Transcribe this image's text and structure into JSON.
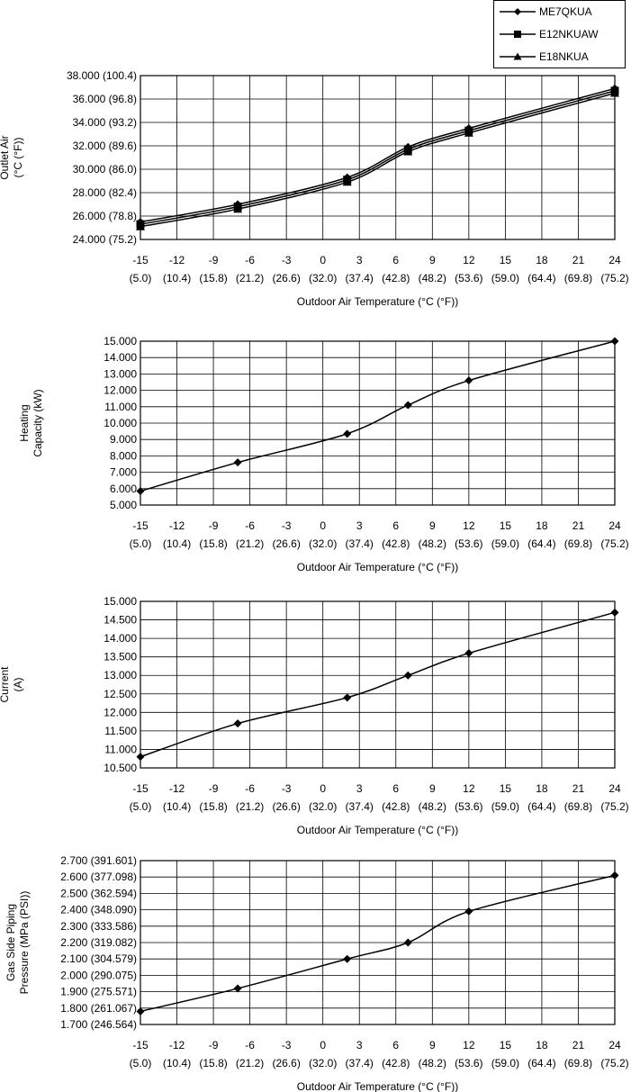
{
  "legend": {
    "entries": [
      {
        "name": "ME7QKUA",
        "marker": "diamond"
      },
      {
        "name": "E12NKUAW",
        "marker": "square"
      },
      {
        "name": "E18NKUA",
        "marker": "triangle"
      }
    ]
  },
  "chart_data": [
    {
      "type": "line",
      "xlabel": "Outdoor Air Temperature (°C (°F))",
      "ylabel": [
        "Outlet Air",
        "(°C (°F))"
      ],
      "x": [
        -15,
        -12,
        -9,
        -6,
        -3,
        0,
        3,
        6,
        9,
        12,
        15,
        18,
        21,
        24
      ],
      "x_tick_labels": [
        "-15",
        "-12",
        "-9",
        "-6",
        "-3",
        "0",
        "3",
        "6",
        "9",
        "12",
        "15",
        "18",
        "21",
        "24"
      ],
      "x_tick_sublabels": [
        "(5.0)",
        "(10.4)",
        "(15.8)",
        "(21.2)",
        "(26.6)",
        "(32.0)",
        "(37.4)",
        "(42.8)",
        "(48.2)",
        "(53.6)",
        "(59.0)",
        "(64.4)",
        "(69.8)",
        "(75.2)"
      ],
      "y_ticks": [
        24,
        26,
        28,
        30,
        32,
        34,
        36,
        38
      ],
      "y_tick_labels": [
        "24.000 (75.2)",
        "26.000 (78.8)",
        "28.000 (82.4)",
        "30.000 (86.0)",
        "32.000 (89.6)",
        "34.000 (93.2)",
        "36.000 (96.8)",
        "38.000 (100.4)"
      ],
      "ylim": [
        24,
        38
      ],
      "grid": true,
      "series": [
        {
          "name": "ME7QKUA",
          "marker": "diamond",
          "x": [
            -15,
            -7,
            2,
            7,
            12,
            24
          ],
          "values": [
            25.5,
            27.0,
            29.3,
            31.9,
            33.5,
            36.9
          ]
        },
        {
          "name": "E12NKUAW",
          "marker": "square",
          "x": [
            -15,
            -7,
            2,
            7,
            12,
            24
          ],
          "values": [
            25.3,
            26.8,
            29.1,
            31.7,
            33.3,
            36.7
          ]
        },
        {
          "name": "E18NKUA",
          "marker": "triangle",
          "x": [
            -15,
            -7,
            2,
            7,
            12,
            24
          ],
          "values": [
            25.1,
            26.6,
            28.9,
            31.5,
            33.1,
            36.5
          ]
        }
      ]
    },
    {
      "type": "line",
      "xlabel": "Outdoor Air Temperature (°C (°F))",
      "ylabel": [
        "Heating",
        "Capacity (kW)"
      ],
      "x_tick_labels": [
        "-15",
        "-12",
        "-9",
        "-6",
        "-3",
        "0",
        "3",
        "6",
        "9",
        "12",
        "15",
        "18",
        "21",
        "24"
      ],
      "x_tick_sublabels": [
        "(5.0)",
        "(10.4)",
        "(15.8)",
        "(21.2)",
        "(26.6)",
        "(32.0)",
        "(37.4)",
        "(42.8)",
        "(48.2)",
        "(53.6)",
        "(59.0)",
        "(64.4)",
        "(69.8)",
        "(75.2)"
      ],
      "y_ticks": [
        5,
        6,
        7,
        8,
        9,
        10,
        11,
        12,
        13,
        14,
        15
      ],
      "y_tick_labels": [
        "5.000",
        "6.000",
        "7.000",
        "8.000",
        "9.000",
        "10.000",
        "11.000",
        "12.000",
        "13.000",
        "14.000",
        "15.000"
      ],
      "ylim": [
        5,
        15
      ],
      "grid": true,
      "series": [
        {
          "marker": "diamond",
          "x": [
            -15,
            -7,
            2,
            7,
            12,
            24
          ],
          "values": [
            5.85,
            7.6,
            9.35,
            11.1,
            12.6,
            15.0
          ]
        }
      ]
    },
    {
      "type": "line",
      "xlabel": "Outdoor Air Temperature (°C (°F))",
      "ylabel": [
        "Current",
        "(A)"
      ],
      "x_tick_labels": [
        "-15",
        "-12",
        "-9",
        "-6",
        "-3",
        "0",
        "3",
        "6",
        "9",
        "12",
        "15",
        "18",
        "21",
        "24"
      ],
      "x_tick_sublabels": [
        "(5.0)",
        "(10.4)",
        "(15.8)",
        "(21.2)",
        "(26.6)",
        "(32.0)",
        "(37.4)",
        "(42.8)",
        "(48.2)",
        "(53.6)",
        "(59.0)",
        "(64.4)",
        "(69.8)",
        "(75.2)"
      ],
      "y_ticks": [
        10.5,
        11.0,
        11.5,
        12.0,
        12.5,
        13.0,
        13.5,
        14.0,
        14.5,
        15.0
      ],
      "y_tick_labels": [
        "10.500",
        "11.000",
        "11.500",
        "12.000",
        "12.500",
        "13.000",
        "13.500",
        "14.000",
        "14.500",
        "15.000"
      ],
      "ylim": [
        10.5,
        15.0
      ],
      "grid": true,
      "series": [
        {
          "marker": "diamond",
          "x": [
            -15,
            -7,
            2,
            7,
            12,
            24
          ],
          "values": [
            10.8,
            11.7,
            12.4,
            13.0,
            13.6,
            14.7
          ]
        }
      ]
    },
    {
      "type": "line",
      "xlabel": "Outdoor Air Temperature (°C (°F))",
      "ylabel": [
        "Gas Side Piping",
        "Pressure (MPa (PSI))"
      ],
      "x_tick_labels": [
        "-15",
        "-12",
        "-9",
        "-6",
        "-3",
        "0",
        "3",
        "6",
        "9",
        "12",
        "15",
        "18",
        "21",
        "24"
      ],
      "x_tick_sublabels": [
        "(5.0)",
        "(10.4)",
        "(15.8)",
        "(21.2)",
        "(26.6)",
        "(32.0)",
        "(37.4)",
        "(42.8)",
        "(48.2)",
        "(53.6)",
        "(59.0)",
        "(64.4)",
        "(69.8)",
        "(75.2)"
      ],
      "y_ticks": [
        1.7,
        1.8,
        1.9,
        2.0,
        2.1,
        2.2,
        2.3,
        2.4,
        2.5,
        2.6,
        2.7
      ],
      "y_tick_labels": [
        "1.700 (246.564)",
        "1.800 (261.067)",
        "1.900 (275.571)",
        "2.000 (290.075)",
        "2.100 (304.579)",
        "2.200 (319.082)",
        "2.300 (333.586)",
        "2.400 (348.090)",
        "2.500 (362.594)",
        "2.600 (377.098)",
        "2.700 (391.601)"
      ],
      "ylim": [
        1.7,
        2.7
      ],
      "grid": true,
      "series": [
        {
          "marker": "diamond",
          "x": [
            -15,
            -7,
            2,
            7,
            12,
            24
          ],
          "values": [
            1.78,
            1.92,
            2.1,
            2.2,
            2.39,
            2.61
          ]
        }
      ]
    }
  ]
}
